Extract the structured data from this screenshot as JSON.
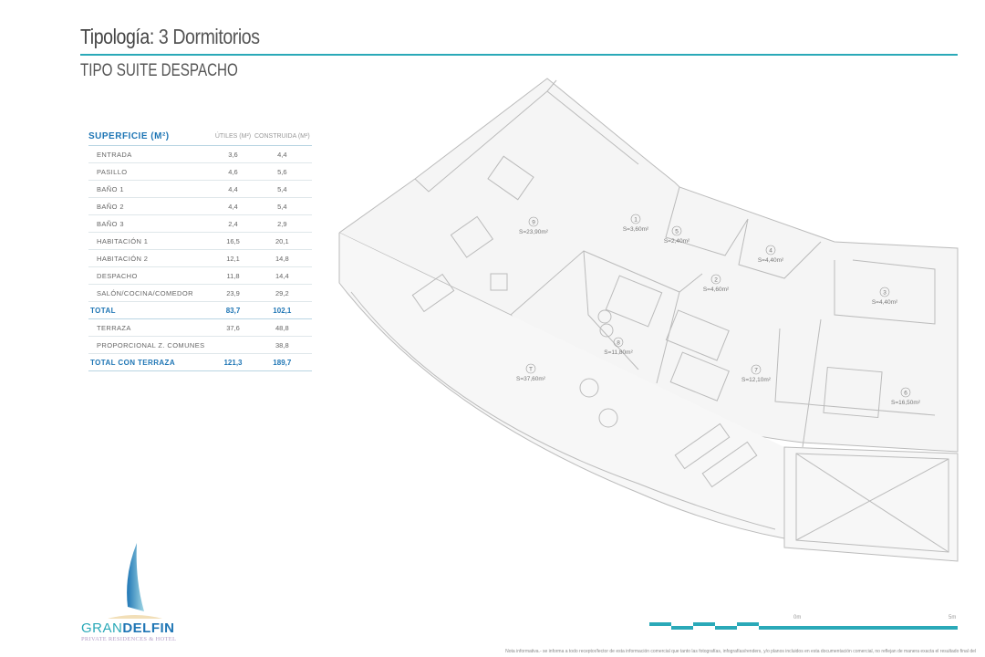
{
  "header": {
    "title_label": "Tipología:",
    "title_value": "3 Dormitorios",
    "subtitle": "TIPO SUITE DESPACHO"
  },
  "table": {
    "headers": [
      "SUPERFICIE (M²)",
      "ÚTILES (M²)",
      "CONSTRUIDA (M²)"
    ],
    "rows": [
      {
        "name": "ENTRADA",
        "utiles": "3,6",
        "construida": "4,4"
      },
      {
        "name": "PASILLO",
        "utiles": "4,6",
        "construida": "5,6"
      },
      {
        "name": "BAÑO 1",
        "utiles": "4,4",
        "construida": "5,4"
      },
      {
        "name": "BAÑO 2",
        "utiles": "4,4",
        "construida": "5,4"
      },
      {
        "name": "BAÑO 3",
        "utiles": "2,4",
        "construida": "2,9"
      },
      {
        "name": "HABITACIÓN 1",
        "utiles": "16,5",
        "construida": "20,1"
      },
      {
        "name": "HABITACIÓN 2",
        "utiles": "12,1",
        "construida": "14,8"
      },
      {
        "name": "DESPACHO",
        "utiles": "11,8",
        "construida": "14,4"
      },
      {
        "name": "SALÓN/COCINA/COMEDOR",
        "utiles": "23,9",
        "construida": "29,2"
      }
    ],
    "total": {
      "name": "TOTAL",
      "utiles": "83,7",
      "construida": "102,1"
    },
    "extra": [
      {
        "name": "TERRAZA",
        "utiles": "37,6",
        "construida": "48,8"
      },
      {
        "name": "PROPORCIONAL Z. COMUNES",
        "utiles": "",
        "construida": "38,8"
      }
    ],
    "total_terraza": {
      "name": "TOTAL CON TERRAZA",
      "utiles": "121,3",
      "construida": "189,7"
    }
  },
  "rooms": [
    {
      "num": "9",
      "area": "S=23,90m²"
    },
    {
      "num": "1",
      "area": "S=3,60m²"
    },
    {
      "num": "5",
      "area": "S=2,40m²"
    },
    {
      "num": "4",
      "area": "S=4,40m²"
    },
    {
      "num": "2",
      "area": "S=4,60m²"
    },
    {
      "num": "3",
      "area": "S=4,40m²"
    },
    {
      "num": "8",
      "area": "S=11,80m²"
    },
    {
      "num": "7",
      "area": "S=12,10m²"
    },
    {
      "num": "T",
      "area": "S=37,60m²"
    },
    {
      "num": "6",
      "area": "S=16,50m²"
    }
  ],
  "scale": {
    "start": "0m",
    "end": "5m"
  },
  "brand": {
    "name_light": "GRAN",
    "name_bold": "DELFIN",
    "tagline": "PRIVATE RESIDENCES & HOTEL"
  },
  "footnote": "Nota informativa.- se informa a todo receptor/lector de esta información comercial que tanto las fotografías, infografías/renders, y/o planos incluidos en esta documentación comercial, no reflejan de manera exacta el resultado final del",
  "colors": {
    "accent": "#2aa9b8",
    "brand_blue": "#1f76b5"
  }
}
